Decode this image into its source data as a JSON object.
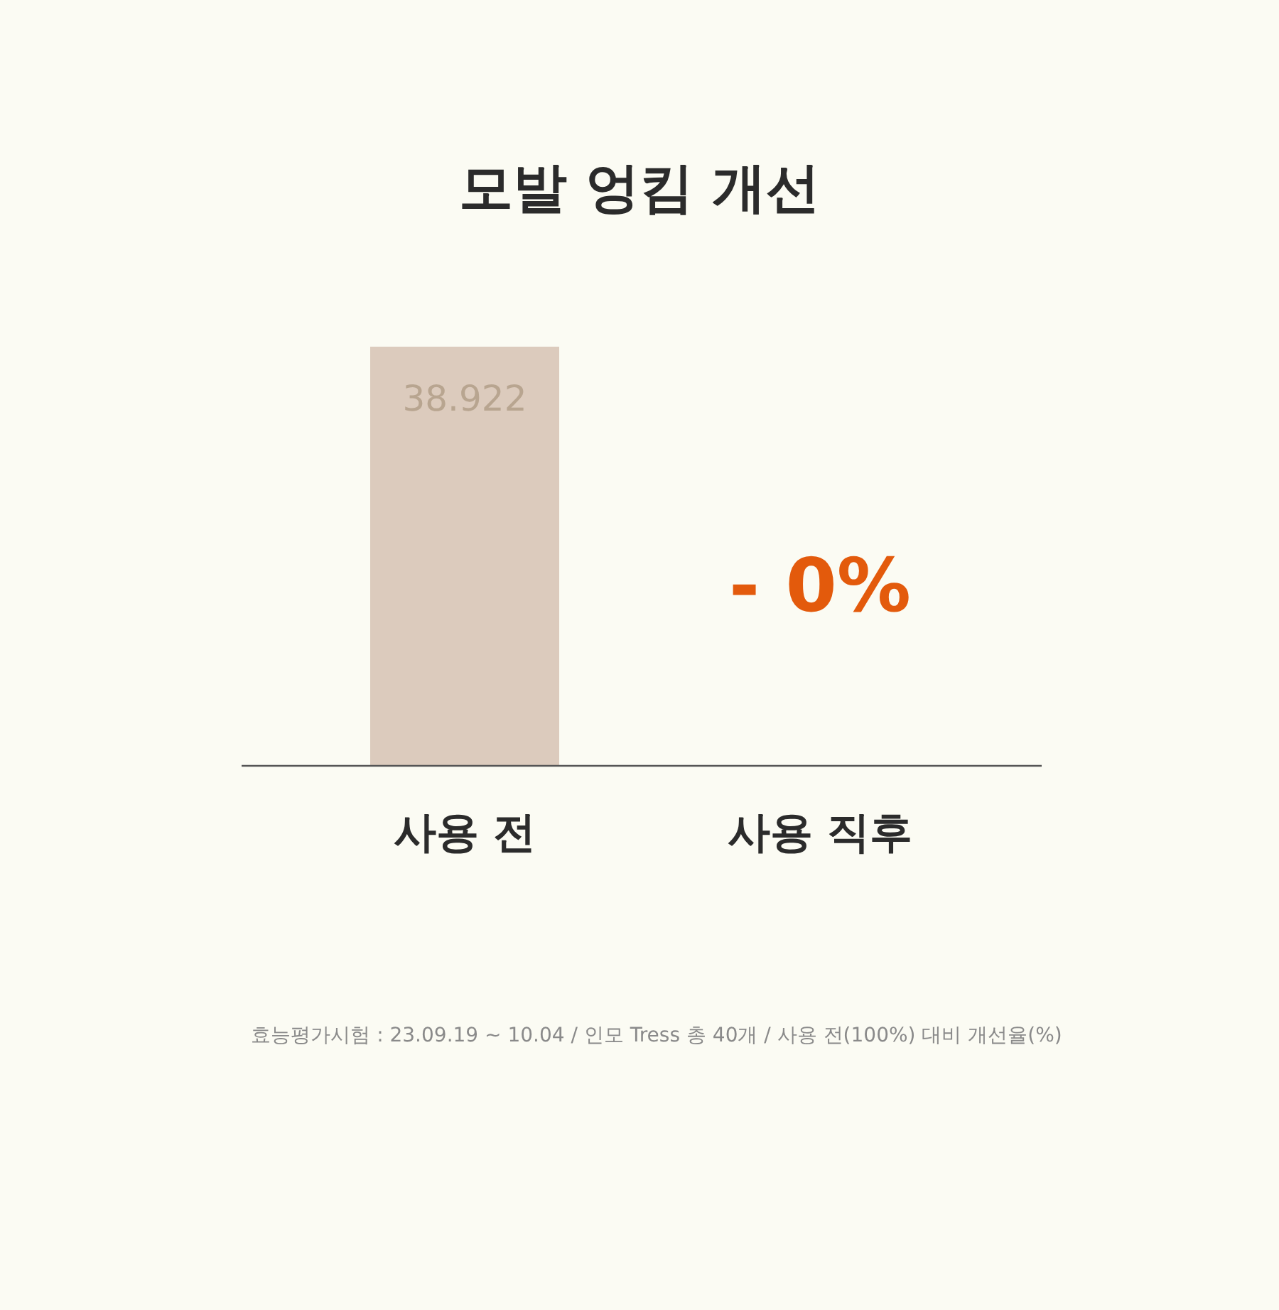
{
  "chart_data": {
    "type": "bar",
    "title": "모발 엉킴 개선",
    "categories": [
      "사용 전",
      "사용 직후"
    ],
    "values": [
      38.922,
      0
    ],
    "ylim": [
      0,
      38.922
    ],
    "colors": [
      "#dccbbd",
      "#dccbbd"
    ],
    "value_labels": [
      "38.922",
      "- 0%"
    ],
    "annotations": [
      "효능평가시험 : 23.09.19 ~ 10.04 / 인모 Tress 총 40개 / 사용 전(100%) 대비 개선율(%)"
    ],
    "grid": false
  }
}
